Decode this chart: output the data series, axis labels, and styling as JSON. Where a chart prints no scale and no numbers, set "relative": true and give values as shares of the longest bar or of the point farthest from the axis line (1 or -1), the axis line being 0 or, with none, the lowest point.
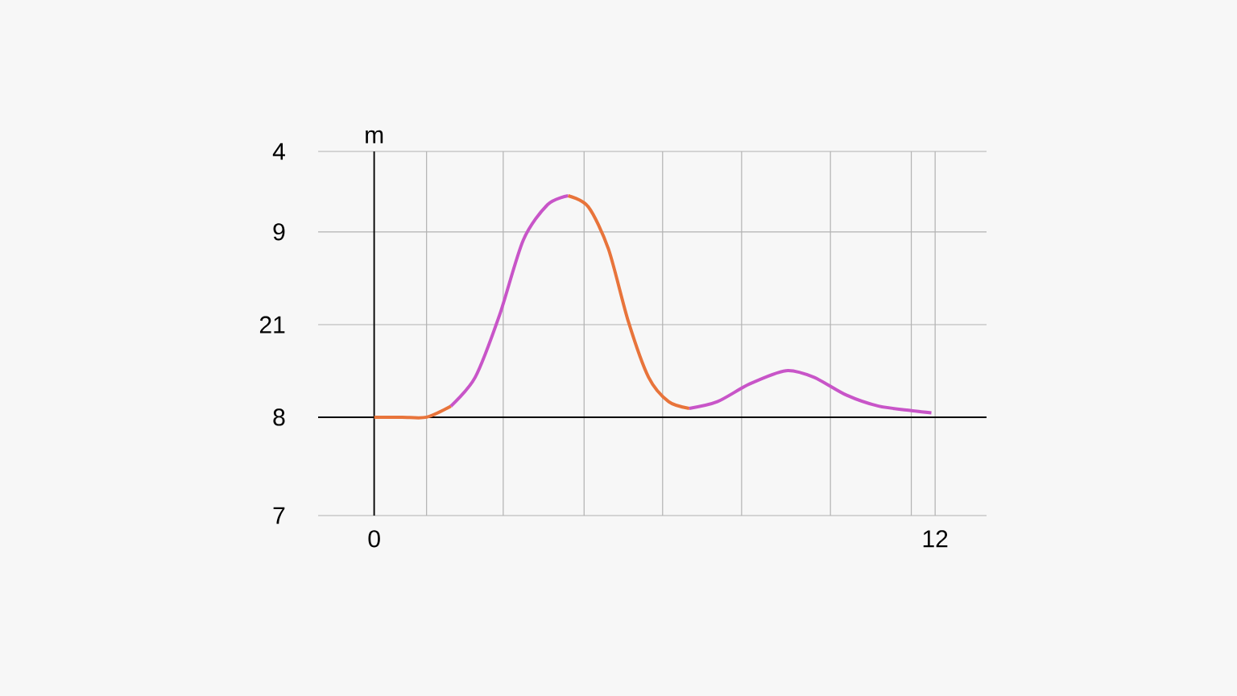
{
  "chart_data": {
    "type": "line",
    "ylabel": "m",
    "relative": true,
    "series": [
      {
        "color": "#e8743b",
        "x": [
          0,
          0.6,
          1.12,
          1.64
        ],
        "values": [
          0,
          0,
          0,
          0.05
        ]
      },
      {
        "color": "#c855c8",
        "x": [
          1.64,
          2.16,
          2.68,
          3.19,
          3.71,
          4.15
        ],
        "values": [
          0.05,
          0.18,
          0.46,
          0.8,
          0.96,
          1
        ]
      },
      {
        "color": "#e8743b",
        "x": [
          4.15,
          4.58,
          5.01,
          5.44,
          5.87,
          6.3,
          6.74
        ],
        "values": [
          1,
          0.95,
          0.76,
          0.43,
          0.18,
          0.07,
          0.04
        ]
      },
      {
        "color": "#c855c8",
        "x": [
          6.74,
          7.34,
          8.03,
          8.81,
          9.41,
          10.1,
          10.79,
          11.49,
          11.92
        ],
        "values": [
          0.04,
          0.07,
          0.15,
          0.21,
          0.18,
          0.1,
          0.05,
          0.03,
          0.02
        ]
      }
    ],
    "xlim": [
      -1.2,
      13.1
    ],
    "xticks": [
      {
        "value": 0,
        "label": "0"
      },
      {
        "value": 1.12,
        "label": null
      },
      {
        "value": 2.76,
        "label": null
      },
      {
        "value": 4.49,
        "label": null
      },
      {
        "value": 6.17,
        "label": null
      },
      {
        "value": 7.86,
        "label": null
      },
      {
        "value": 9.76,
        "label": null
      },
      {
        "value": 11.49,
        "label": null
      },
      {
        "value": 12,
        "label": "12"
      }
    ],
    "annotations": [
      "4",
      "9",
      "21",
      "8",
      "7"
    ],
    "grid": true,
    "marker": "none",
    "line_style": "solid"
  }
}
